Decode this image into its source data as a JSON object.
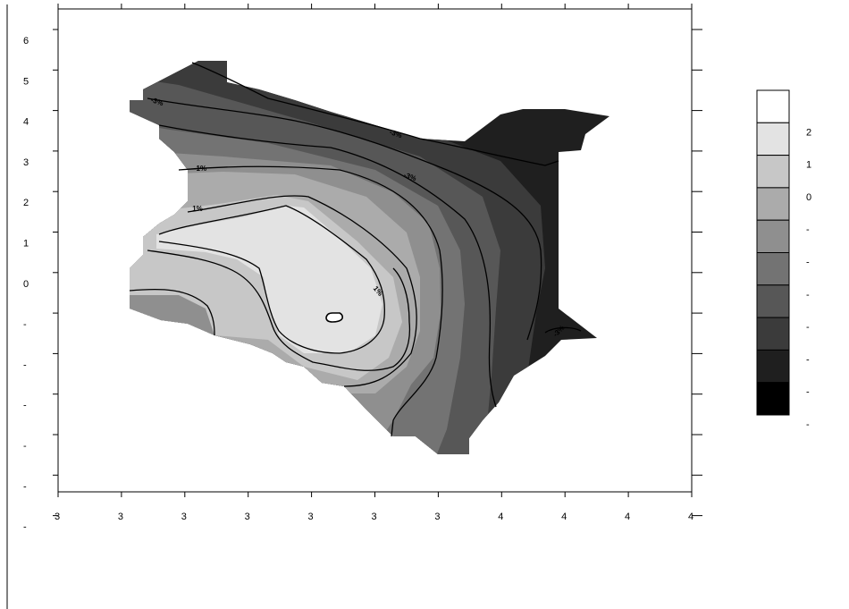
{
  "chart_data": {
    "type": "heatmap",
    "title": "",
    "xlabel": "",
    "ylabel": "",
    "x_tick_labels": [
      "3",
      "3",
      "3",
      "3",
      "3",
      "3",
      "3",
      "4",
      "4",
      "4",
      "4"
    ],
    "y_tick_labels": [
      "6",
      "5",
      "4",
      "3",
      "2",
      "1",
      "0",
      "-",
      "-",
      "-",
      "-",
      "-",
      "-"
    ],
    "colorbar": {
      "labels": [
        "2",
        "1",
        "0",
        "-",
        "-",
        "-",
        "-",
        "-",
        "-",
        "-"
      ],
      "colors": [
        "#ffffff",
        "#e3e3e3",
        "#c7c7c7",
        "#ababab",
        "#8f8f8f",
        "#737373",
        "#575757",
        "#3b3b3b",
        "#1f1f1f",
        "#000000"
      ]
    },
    "contour_labels": [
      "-3%",
      "-3%",
      "-3%",
      "-1%",
      "1%",
      "1%",
      "-3%"
    ],
    "grid": false,
    "legend_position": "right"
  }
}
